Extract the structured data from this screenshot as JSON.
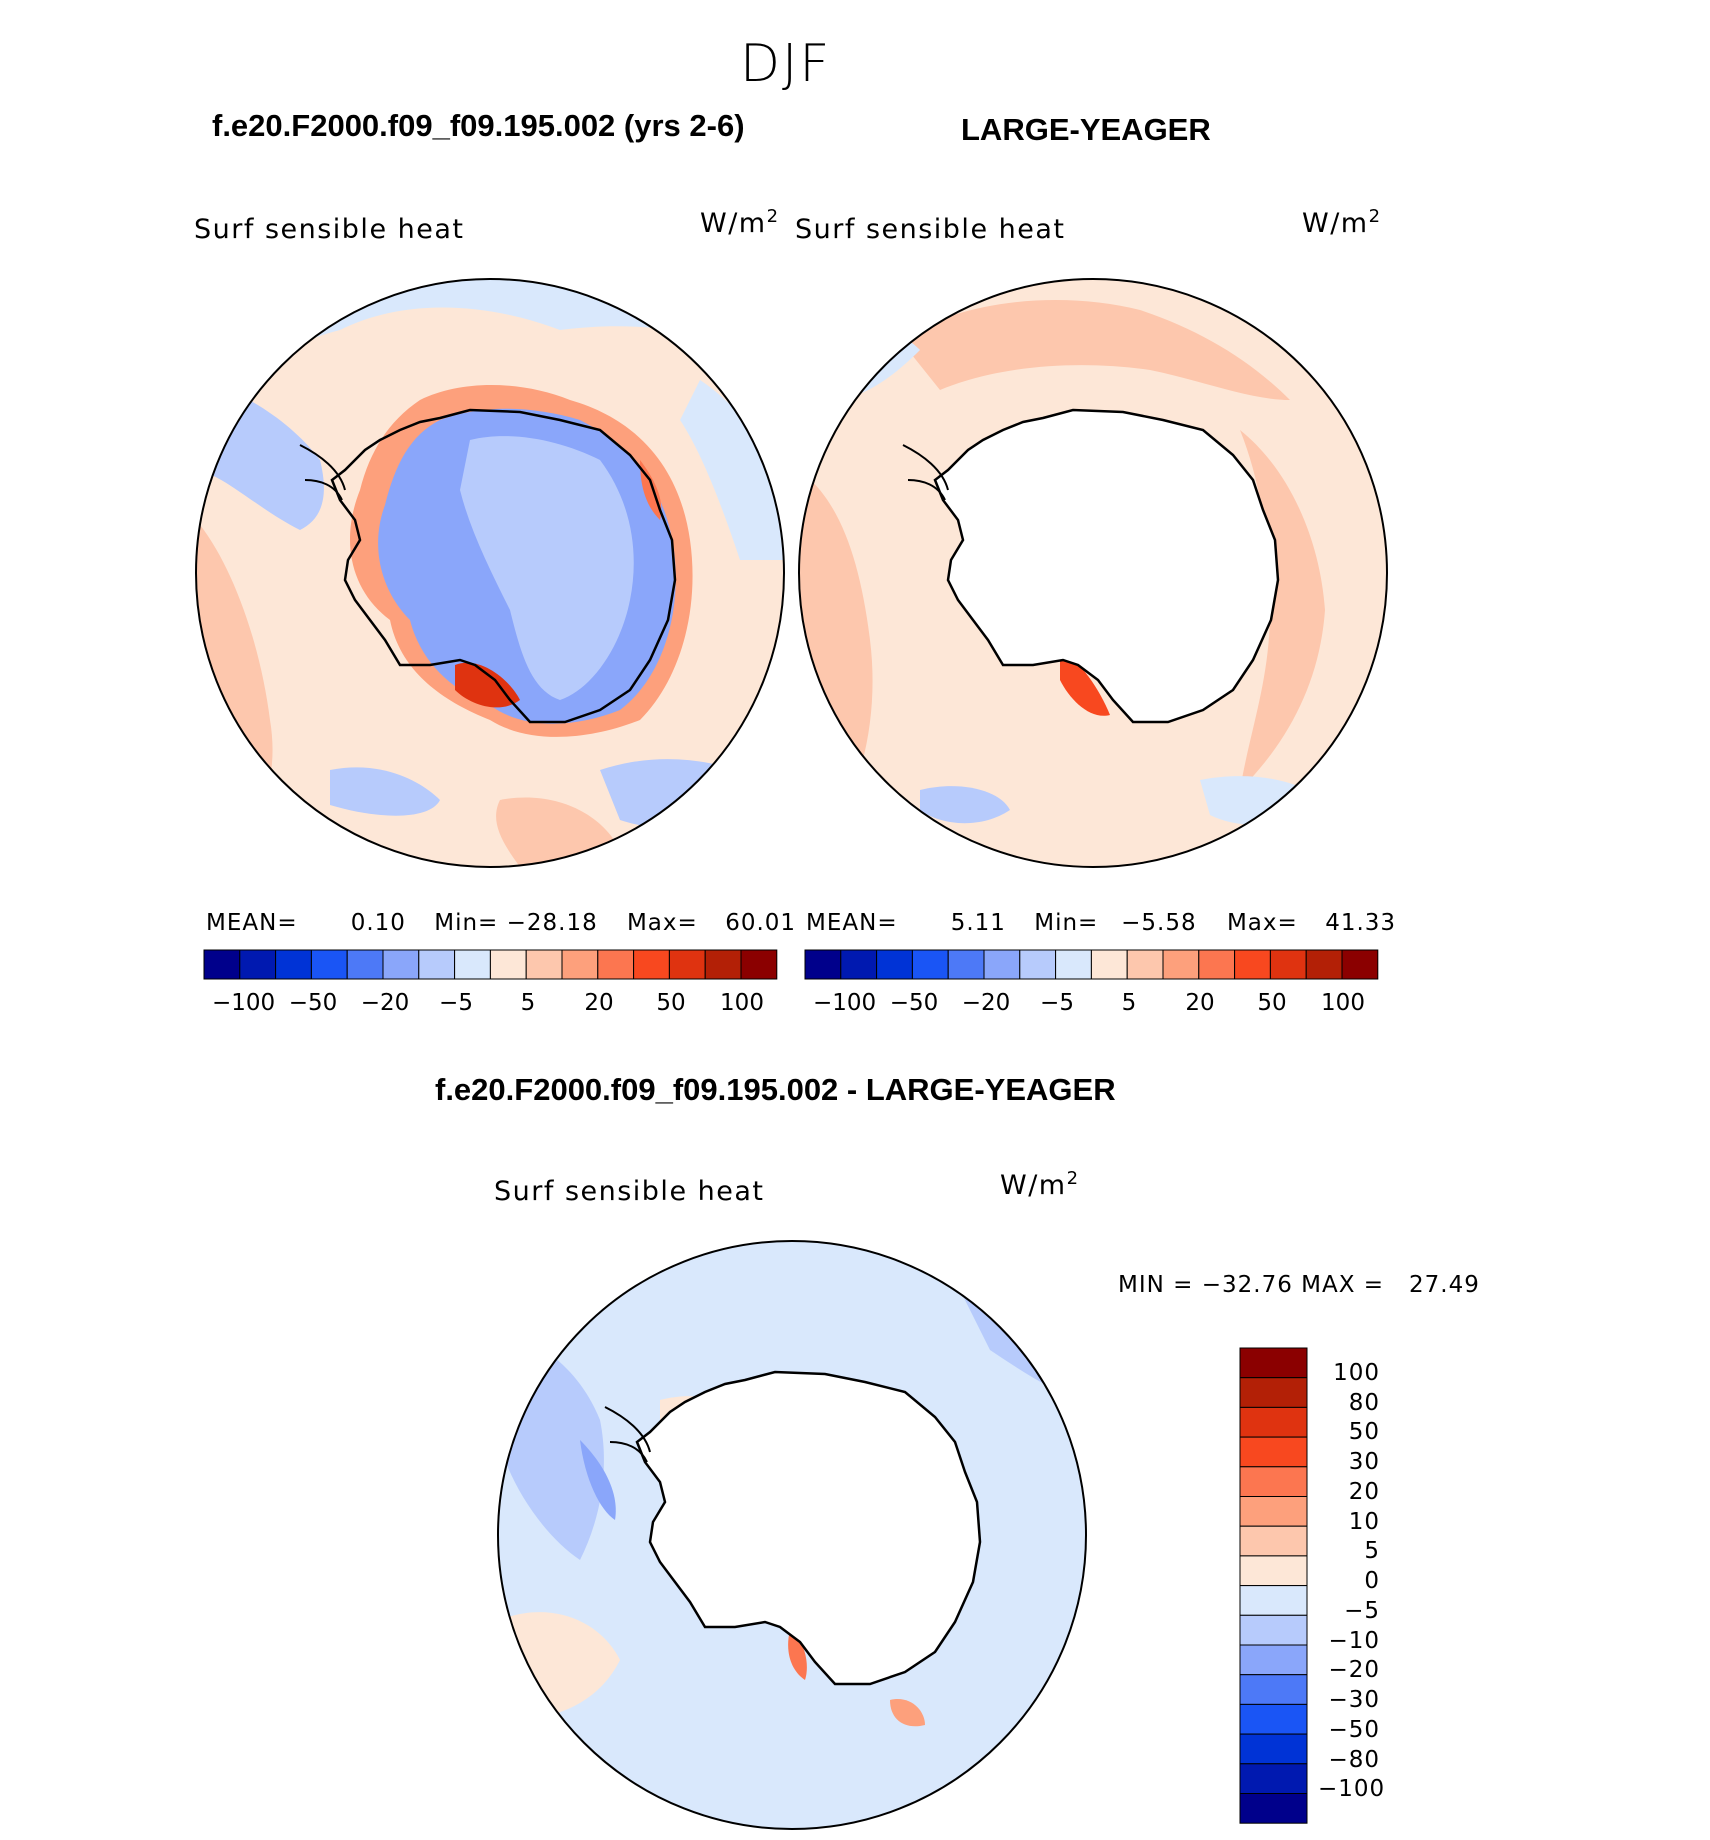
{
  "season": "DJF",
  "panel_left": {
    "case": "f.e20.F2000.f09_f09.195.002 (yrs 2-6)",
    "variable": "Surf sensible heat",
    "units": "W/m",
    "units_sup": "2",
    "mean_label": "MEAN=",
    "mean": "0.10",
    "min_label": "Min=",
    "min": "−28.18",
    "max_label": "Max=",
    "max": "60.01"
  },
  "panel_right": {
    "case": "LARGE-YEAGER",
    "variable": "Surf sensible heat",
    "units": "W/m",
    "units_sup": "2",
    "mean_label": "MEAN=",
    "mean": "5.11",
    "min_label": "Min=",
    "min": "−5.58",
    "max_label": "Max=",
    "max": "41.33"
  },
  "panel_diff": {
    "title": "f.e20.F2000.f09_f09.195.002 - LARGE-YEAGER",
    "variable": "Surf sensible heat",
    "units": "W/m",
    "units_sup": "2",
    "minmax": "MIN = −32.76 MAX =   27.49"
  },
  "colorbar_horizontal": {
    "colors": [
      "#00008b",
      "#0019b0",
      "#0033d6",
      "#1a55f5",
      "#4d79f7",
      "#8aa6fa",
      "#b7cbfc",
      "#d9e8fc",
      "#fde7d7",
      "#fdc7ad",
      "#fda07c",
      "#fc7650",
      "#f8481f",
      "#df3310",
      "#b32006",
      "#8b0000"
    ],
    "tick_labels": [
      "−100",
      "−50",
      "−20",
      "−5",
      "5",
      "20",
      "50",
      "100"
    ]
  },
  "colorbar_vertical": {
    "colors": [
      "#8b0000",
      "#b32006",
      "#df3310",
      "#f8481f",
      "#fc7650",
      "#fda07c",
      "#fdc7ad",
      "#fde7d7",
      "#d9e8fc",
      "#b7cbfc",
      "#8aa6fa",
      "#4d79f7",
      "#1a55f5",
      "#0033d6",
      "#0019b0",
      "#00008b"
    ],
    "tick_labels": [
      "100",
      "80",
      "50",
      "30",
      "20",
      "10",
      "5",
      "0",
      "−5",
      "−10",
      "−20",
      "−30",
      "−50",
      "−80",
      "−100"
    ]
  },
  "colors": {
    "land_mask": "#ffffff",
    "coastline": "#000000"
  }
}
